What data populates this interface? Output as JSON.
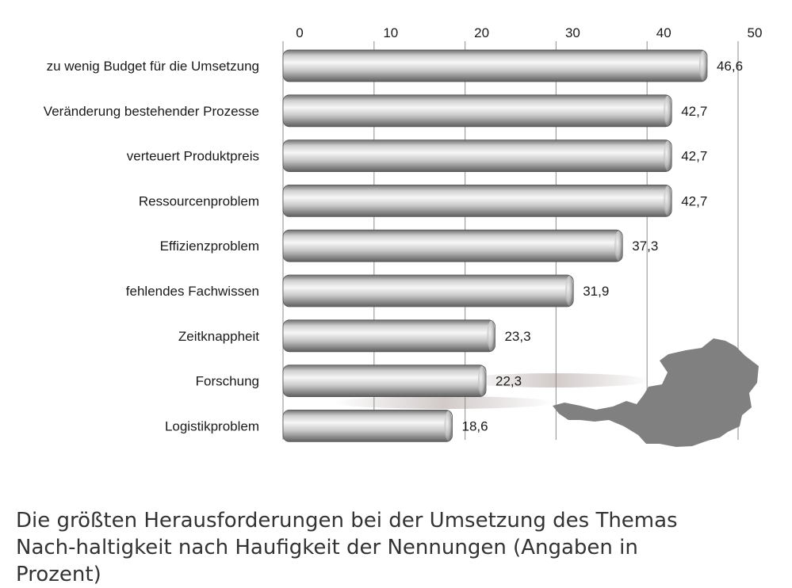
{
  "chart_data": {
    "type": "bar",
    "orientation": "horizontal",
    "categories": [
      "zu wenig Budget für die Umsetzung",
      "Veränderung bestehender Prozesse",
      "verteuert Produktpreis",
      "Ressourcenproblem",
      "Effizienzproblem",
      "fehlendes Fachwissen",
      "Zeitknappheit",
      "Forschung",
      "Logistikproblem"
    ],
    "values": [
      46.6,
      42.7,
      42.7,
      42.7,
      37.3,
      31.9,
      23.3,
      22.3,
      18.6
    ],
    "value_labels": [
      "46,6",
      "42,7",
      "42,7",
      "42,7",
      "37,3",
      "31,9",
      "23,3",
      "22,3",
      "18,6"
    ],
    "ticks": [
      0,
      10,
      20,
      30,
      40,
      50
    ],
    "tick_labels": [
      "0",
      "10",
      "20",
      "30",
      "40",
      "50"
    ],
    "xlim": [
      0,
      50
    ],
    "axis_position": "top",
    "grid": true,
    "bar_color": "#bdbdbd",
    "map_color": "#808080"
  },
  "caption": "Die größten Herausforderungen bei der Umsetzung des Themas Nach-haltigkeit nach Haufigkeit der Nennungen (Angaben in Prozent)"
}
